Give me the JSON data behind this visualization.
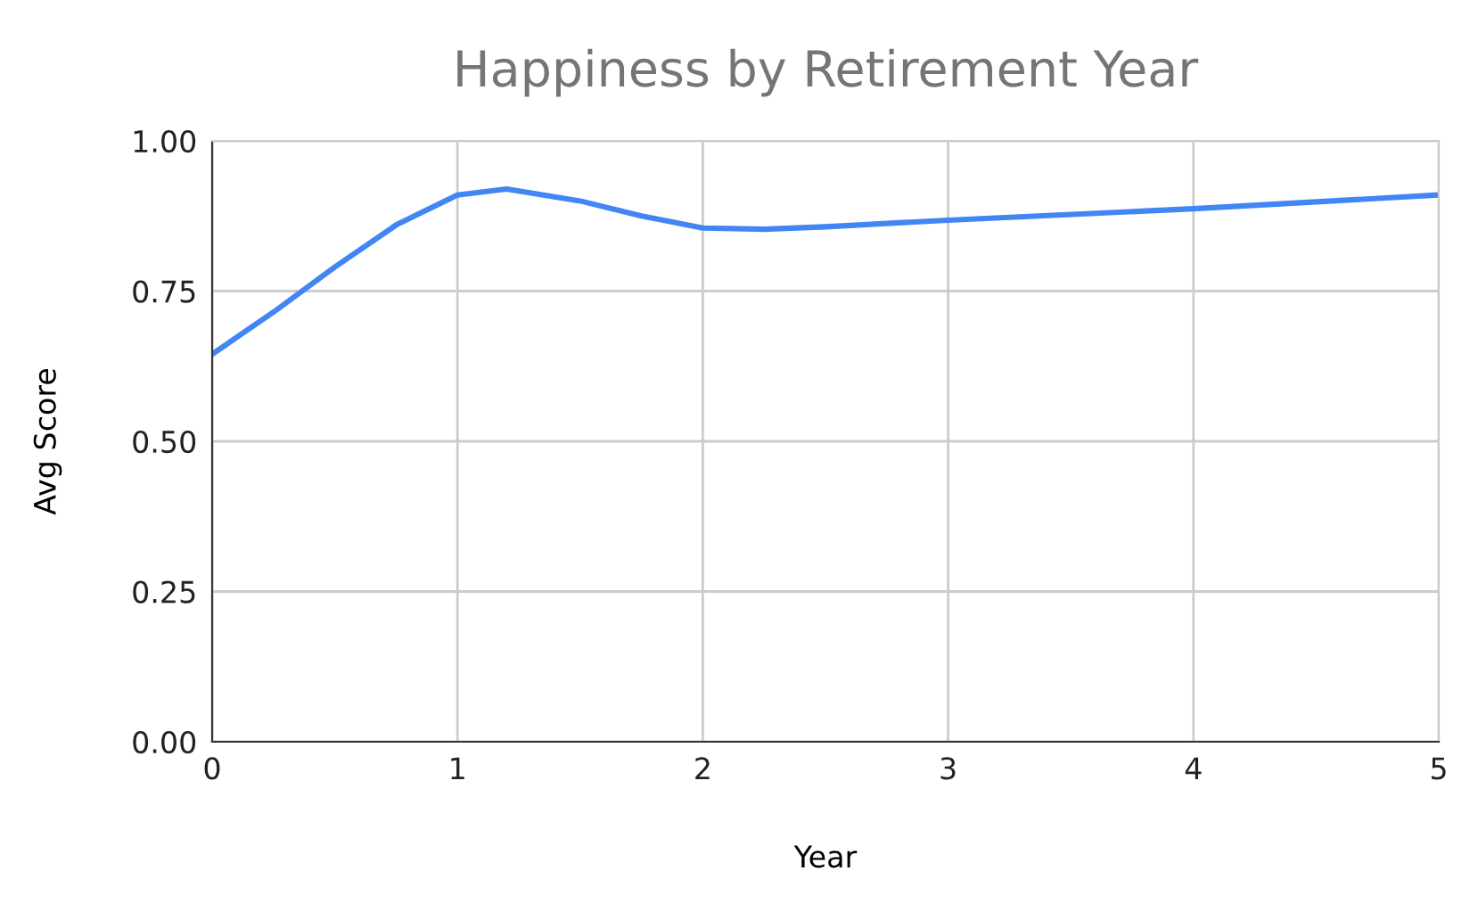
{
  "chart_data": {
    "type": "line",
    "title": "Happiness by Retirement Year",
    "xlabel": "Year",
    "ylabel": "Avg Score",
    "x": [
      0,
      0.25,
      0.5,
      0.75,
      1,
      1.2,
      1.5,
      1.75,
      2,
      2.25,
      2.5,
      3,
      4,
      5
    ],
    "series": [
      {
        "color": "#4285f4",
        "values": [
          0.645,
          0.715,
          0.79,
          0.86,
          0.91,
          0.92,
          0.9,
          0.875,
          0.855,
          0.853,
          0.857,
          0.868,
          0.887,
          0.91
        ]
      }
    ],
    "xlim": [
      0,
      5
    ],
    "xticks": [
      0,
      1,
      2,
      3,
      4,
      5
    ],
    "ylim": [
      0,
      1
    ],
    "yticks": [
      {
        "value": 0,
        "label": "0.00"
      },
      {
        "value": 0.25,
        "label": "0.25"
      },
      {
        "value": 0.5,
        "label": "0.50"
      },
      {
        "value": 0.75,
        "label": "0.75"
      },
      {
        "value": 1,
        "label": "1.00"
      }
    ],
    "grid": true,
    "marker": "none",
    "line_style": "solid"
  }
}
